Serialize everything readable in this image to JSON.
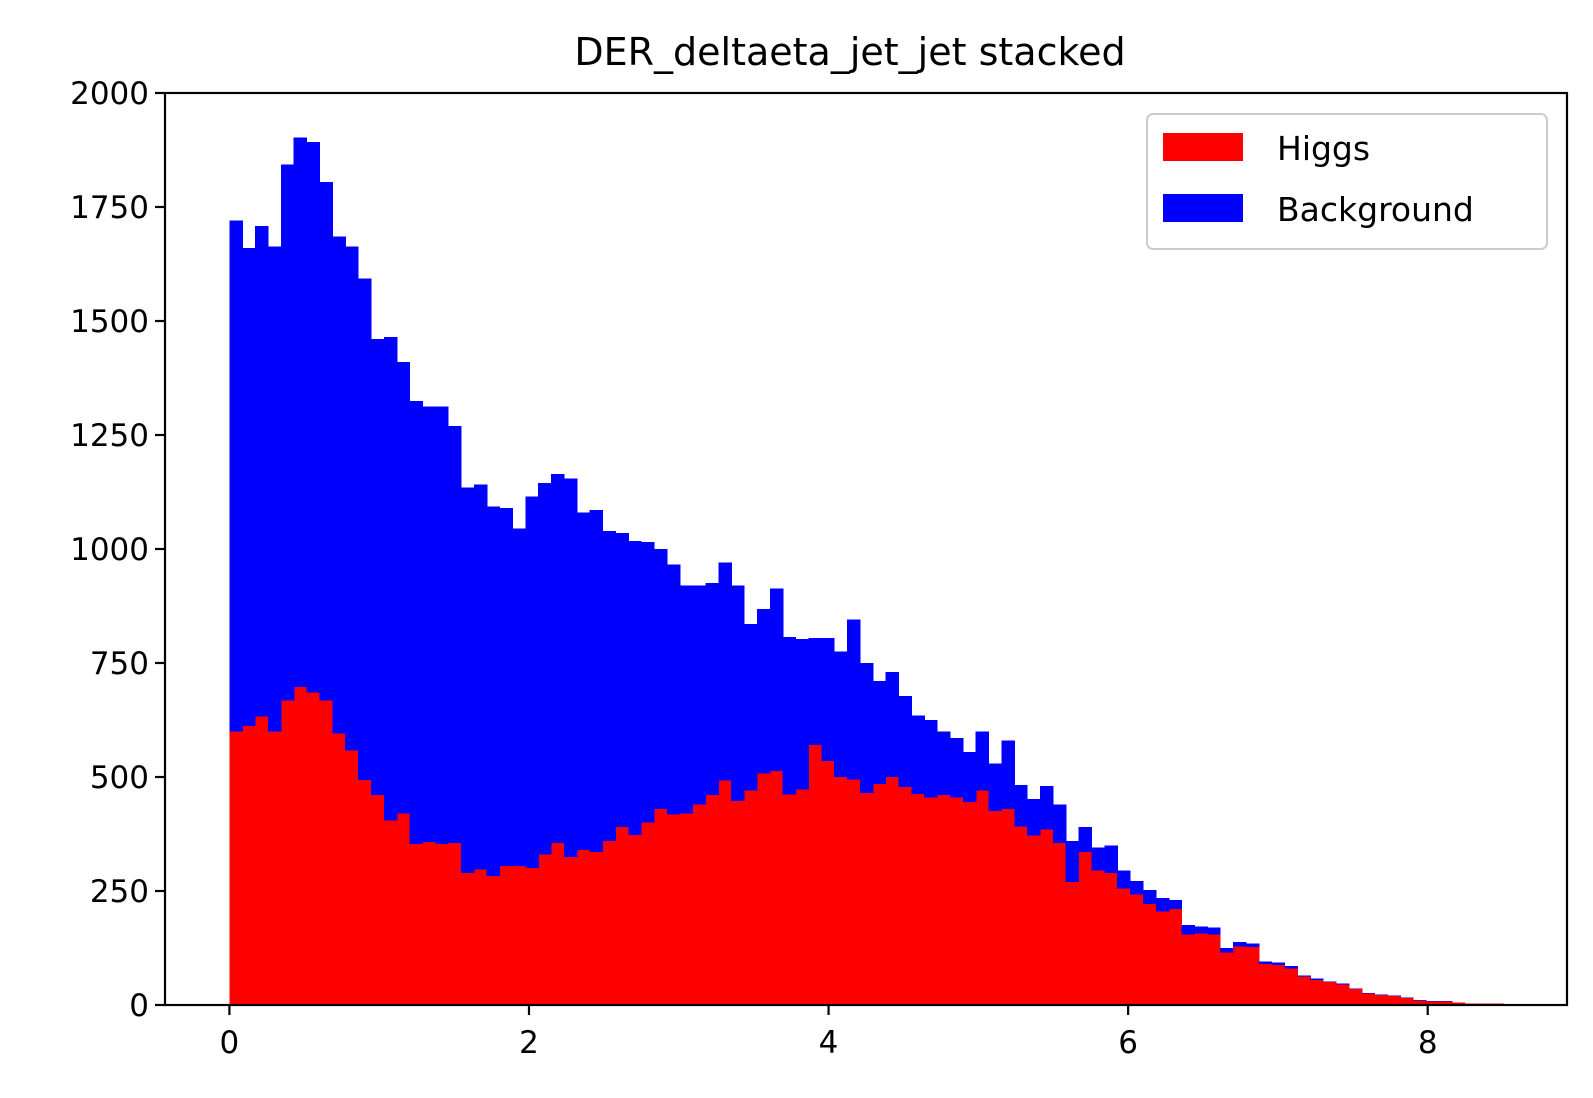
{
  "chart_data": {
    "type": "bar",
    "stacked": true,
    "title": "DER_deltaeta_jet_jet stacked",
    "xlabel": "",
    "ylabel": "",
    "xlim": [
      -0.43,
      8.93
    ],
    "ylim": [
      0,
      2000
    ],
    "x_ticks": [
      0,
      2,
      4,
      6,
      8
    ],
    "y_ticks": [
      0,
      250,
      500,
      750,
      1000,
      1250,
      1500,
      1750,
      2000
    ],
    "grid": false,
    "legend_position": "top-right",
    "bins": {
      "start": 0.0,
      "width": 0.0859
    },
    "series": [
      {
        "name": "Higgs",
        "color": "#ff0000",
        "values": [
          600,
          612,
          633,
          600,
          668,
          697,
          685,
          668,
          595,
          558,
          493,
          460,
          405,
          420,
          353,
          358,
          353,
          355,
          290,
          297,
          283,
          305,
          305,
          300,
          330,
          355,
          325,
          340,
          335,
          360,
          390,
          373,
          400,
          430,
          418,
          420,
          440,
          460,
          492,
          447,
          470,
          508,
          513,
          462,
          473,
          570,
          535,
          500,
          495,
          465,
          485,
          500,
          478,
          463,
          455,
          460,
          455,
          445,
          470,
          425,
          430,
          392,
          372,
          385,
          355,
          270,
          335,
          295,
          290,
          255,
          242,
          222,
          205,
          210,
          155,
          157,
          155,
          115,
          128,
          127,
          90,
          88,
          80,
          62,
          55,
          50,
          45,
          35,
          25,
          22,
          20,
          15,
          10,
          8,
          8,
          5,
          3,
          3,
          3,
          1
        ]
      },
      {
        "name": "Background",
        "color": "#0000ff",
        "values": [
          1120,
          1048,
          1075,
          1063,
          1175,
          1205,
          1208,
          1137,
          1090,
          1105,
          1100,
          1000,
          1060,
          990,
          972,
          955,
          960,
          915,
          845,
          845,
          810,
          785,
          740,
          815,
          815,
          810,
          830,
          740,
          750,
          680,
          645,
          645,
          615,
          570,
          548,
          500,
          480,
          465,
          478,
          473,
          365,
          360,
          400,
          345,
          330,
          235,
          270,
          275,
          350,
          285,
          225,
          230,
          200,
          172,
          170,
          140,
          130,
          110,
          130,
          105,
          150,
          90,
          80,
          95,
          85,
          90,
          55,
          50,
          60,
          40,
          30,
          30,
          30,
          20,
          20,
          15,
          15,
          10,
          10,
          8,
          5,
          5,
          5,
          3,
          3,
          2,
          2,
          1,
          1,
          1,
          1,
          1,
          1,
          1,
          1,
          0,
          0,
          0,
          0,
          0
        ]
      }
    ]
  }
}
